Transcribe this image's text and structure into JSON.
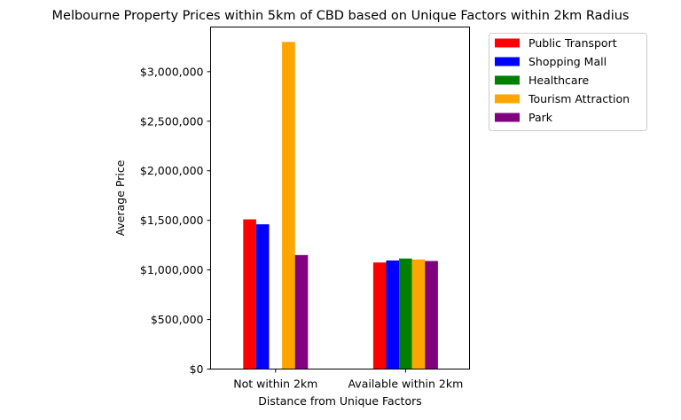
{
  "chart_data": {
    "type": "bar",
    "title": "Melbourne Property Prices within 5km of CBD based on Unique Factors within 2km Radius",
    "xlabel": "Distance from Unique Factors",
    "ylabel": "Average Price",
    "categories": [
      "Not within 2km",
      "Available within 2km"
    ],
    "ylim": [
      0,
      3450000
    ],
    "yticks": [
      0,
      500000,
      1000000,
      1500000,
      2000000,
      2500000,
      3000000
    ],
    "ytick_labels": [
      "$0",
      "$500,000",
      "$1,000,000",
      "$1,500,000",
      "$2,000,000",
      "$2,500,000",
      "$3,000,000"
    ],
    "series": [
      {
        "name": "Public Transport",
        "color": "#ff0000",
        "values": [
          1510000,
          1075000
        ]
      },
      {
        "name": "Shopping Mall",
        "color": "#0000ff",
        "values": [
          1460000,
          1095000
        ]
      },
      {
        "name": "Healthcare",
        "color": "#008000",
        "values": [
          null,
          1115000
        ]
      },
      {
        "name": "Tourism Attraction",
        "color": "#ffa500",
        "values": [
          3300000,
          1105000
        ]
      },
      {
        "name": "Park",
        "color": "#800080",
        "values": [
          1150000,
          1090000
        ]
      }
    ],
    "grid": false,
    "legend_position": "outside-top-right"
  }
}
